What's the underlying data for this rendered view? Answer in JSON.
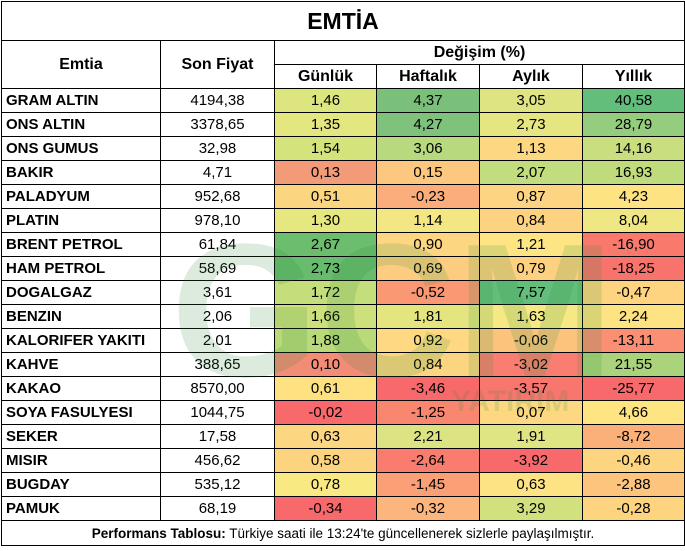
{
  "title": "EMTİA",
  "headers": {
    "commodity": "Emtia",
    "last_price": "Son Fiyat",
    "change": "Değişim (%)",
    "daily": "Günlük",
    "weekly": "Haftalık",
    "monthly": "Aylık",
    "yearly": "Yıllık"
  },
  "rows": [
    {
      "name": "GRAM ALTIN",
      "price": "4194,38",
      "daily": "1,46",
      "weekly": "4,37",
      "monthly": "3,05",
      "yearly": "40,58"
    },
    {
      "name": "ONS ALTIN",
      "price": "3378,65",
      "daily": "1,35",
      "weekly": "4,27",
      "monthly": "2,73",
      "yearly": "28,79"
    },
    {
      "name": "ONS GUMUS",
      "price": "32,98",
      "daily": "1,54",
      "weekly": "3,06",
      "monthly": "1,13",
      "yearly": "14,16"
    },
    {
      "name": "BAKIR",
      "price": "4,71",
      "daily": "0,13",
      "weekly": "0,15",
      "monthly": "2,07",
      "yearly": "16,93"
    },
    {
      "name": "PALADYUM",
      "price": "952,68",
      "daily": "0,51",
      "weekly": "-0,23",
      "monthly": "0,87",
      "yearly": "4,23"
    },
    {
      "name": "PLATIN",
      "price": "978,10",
      "daily": "1,30",
      "weekly": "1,14",
      "monthly": "0,84",
      "yearly": "8,04"
    },
    {
      "name": "BRENT PETROL",
      "price": "61,84",
      "daily": "2,67",
      "weekly": "0,90",
      "monthly": "1,21",
      "yearly": "-16,90"
    },
    {
      "name": "HAM PETROL",
      "price": "58,69",
      "daily": "2,73",
      "weekly": "0,69",
      "monthly": "0,79",
      "yearly": "-18,25"
    },
    {
      "name": "DOGALGAZ",
      "price": "3,61",
      "daily": "1,72",
      "weekly": "-0,52",
      "monthly": "7,57",
      "yearly": "-0,47"
    },
    {
      "name": "BENZIN",
      "price": "2,06",
      "daily": "1,66",
      "weekly": "1,81",
      "monthly": "1,63",
      "yearly": "2,24"
    },
    {
      "name": "KALORIFER YAKITI",
      "price": "2,01",
      "daily": "1,88",
      "weekly": "0,92",
      "monthly": "-0,06",
      "yearly": "-13,11"
    },
    {
      "name": "KAHVE",
      "price": "388,65",
      "daily": "0,10",
      "weekly": "0,84",
      "monthly": "-3,02",
      "yearly": "21,55"
    },
    {
      "name": "KAKAO",
      "price": "8570,00",
      "daily": "0,61",
      "weekly": "-3,46",
      "monthly": "-3,57",
      "yearly": "-25,77"
    },
    {
      "name": "SOYA FASULYESI",
      "price": "1044,75",
      "daily": "-0,02",
      "weekly": "-1,25",
      "monthly": "0,07",
      "yearly": "4,66"
    },
    {
      "name": "SEKER",
      "price": "17,58",
      "daily": "0,63",
      "weekly": "2,21",
      "monthly": "1,91",
      "yearly": "-8,72"
    },
    {
      "name": "MISIR",
      "price": "456,62",
      "daily": "0,58",
      "weekly": "-2,64",
      "monthly": "-3,92",
      "yearly": "-0,46"
    },
    {
      "name": "BUGDAY",
      "price": "535,12",
      "daily": "0,78",
      "weekly": "-1,45",
      "monthly": "0,63",
      "yearly": "-2,88"
    },
    {
      "name": "PAMUK",
      "price": "68,19",
      "daily": "-0,34",
      "weekly": "-0,32",
      "monthly": "3,29",
      "yearly": "-0,28"
    }
  ],
  "colors": {
    "daily": [
      "#dde57e",
      "#e4e67f",
      "#d5e37d",
      "#f39a78",
      "#fbd580",
      "#e7e780",
      "#6cbd6e",
      "#67bc6d",
      "#c5de7c",
      "#cce07c",
      "#b9da79",
      "#f38c76",
      "#fee282",
      "#f8696b",
      "#fcd681",
      "#fcd480",
      "#f8e983",
      "#f8696b"
    ],
    "weekly": [
      "#7ac07a",
      "#7fc27b",
      "#b8d97d",
      "#fcc87f",
      "#fbae7b",
      "#f3e783",
      "#fdd681",
      "#fccc80",
      "#fa9873",
      "#e5e580",
      "#fed981",
      "#fcd580",
      "#f8696b",
      "#f9876f",
      "#dce383",
      "#f97c6f",
      "#fb9f76",
      "#fbb57d"
    ],
    "monthly": [
      "#dfe482",
      "#e5e682",
      "#fed881",
      "#c2dd7d",
      "#fdd481",
      "#fdd381",
      "#fee483",
      "#fdd180",
      "#63be7b",
      "#f6e883",
      "#fcc37d",
      "#f97d70",
      "#f9766f",
      "#fdd881",
      "#e0e583",
      "#f8696b",
      "#fde383",
      "#d2e07e"
    ],
    "yearly": [
      "#63be7b",
      "#95cd7e",
      "#c9de7e",
      "#bfdb7c",
      "#fee383",
      "#efe684",
      "#f9796d",
      "#f9736d",
      "#fed480",
      "#fee382",
      "#fa8f74",
      "#aad37c",
      "#f8696b",
      "#fee582",
      "#fbaf79",
      "#fdd480",
      "#fdc47e",
      "#fed480"
    ]
  },
  "footer": {
    "label": "Performans Tablosu:",
    "text": " Türkiye saati ile 13:24'te güncellenerek sizlerle paylaşılmıştır."
  },
  "watermark_text": "GCM",
  "watermark_sub": "YATIRIM"
}
